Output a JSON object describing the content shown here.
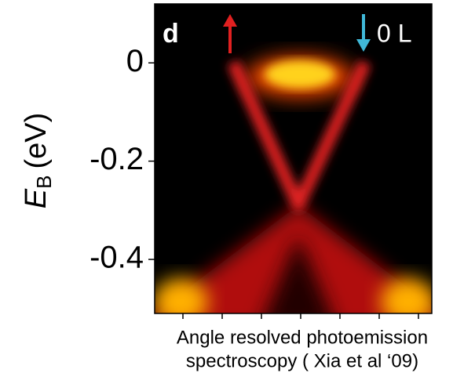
{
  "figure": {
    "panel_label": "d",
    "annotation": "0 L",
    "y_label": {
      "symbol": "E",
      "subscript": "B",
      "unit": "(eV)"
    },
    "ylim": [
      -0.51,
      0.12
    ],
    "yticks": [
      0,
      -0.2,
      -0.4
    ],
    "caption": [
      "Angle resolved photoemission",
      "spectroscopy ( Xia et al ‘09)"
    ]
  }
}
